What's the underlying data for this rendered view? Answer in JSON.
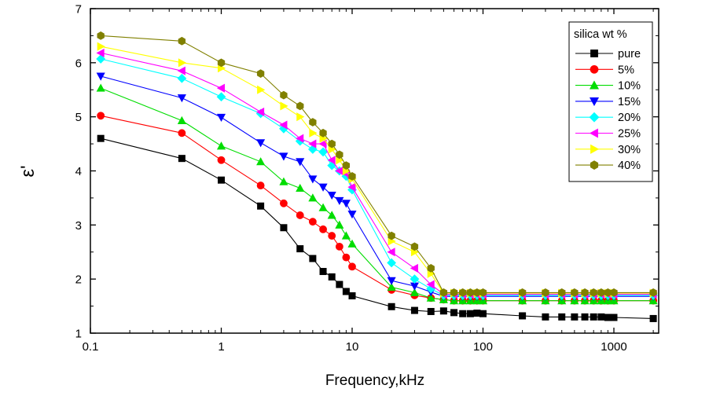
{
  "chart_data": {
    "type": "scatter",
    "title": "",
    "xlabel": "Frequency,kHz",
    "ylabel": "ε'",
    "xscale": "log",
    "xlim": [
      0.1,
      2200
    ],
    "ylim": [
      1,
      7
    ],
    "xticks": [
      0.1,
      1,
      10,
      100,
      1000
    ],
    "xtick_labels": [
      "0.1",
      "1",
      "10",
      "100",
      "1000"
    ],
    "yticks": [
      1,
      2,
      3,
      4,
      5,
      6,
      7
    ],
    "ytick_labels": [
      "1",
      "2",
      "3",
      "4",
      "5",
      "6",
      "7"
    ],
    "legend_title": "silica wt %",
    "legend_position": "top-right",
    "x": [
      0.12,
      0.5,
      1,
      2,
      3,
      4,
      5,
      6,
      7,
      8,
      9,
      10,
      20,
      30,
      40,
      50,
      60,
      70,
      80,
      90,
      100,
      200,
      300,
      400,
      500,
      600,
      700,
      800,
      900,
      1000,
      2000
    ],
    "series": [
      {
        "name": "pure",
        "color": "#000000",
        "marker": "square",
        "values": [
          4.6,
          4.23,
          3.83,
          3.35,
          2.95,
          2.56,
          2.38,
          2.14,
          2.04,
          1.9,
          1.77,
          1.69,
          1.49,
          1.42,
          1.4,
          1.41,
          1.38,
          1.36,
          1.36,
          1.37,
          1.36,
          1.32,
          1.3,
          1.3,
          1.3,
          1.3,
          1.3,
          1.3,
          1.29,
          1.29,
          1.27
        ]
      },
      {
        "name": "5%",
        "color": "#ff0000",
        "marker": "circle",
        "values": [
          5.02,
          4.7,
          4.2,
          3.73,
          3.4,
          3.18,
          3.06,
          2.92,
          2.8,
          2.6,
          2.4,
          2.23,
          1.8,
          1.7,
          1.65,
          1.62,
          1.6,
          1.6,
          1.6,
          1.6,
          1.6,
          1.6,
          1.6,
          1.6,
          1.6,
          1.6,
          1.6,
          1.6,
          1.6,
          1.6,
          1.6
        ]
      },
      {
        "name": "10%",
        "color": "#00dd00",
        "marker": "triangle-up",
        "values": [
          5.53,
          4.93,
          4.46,
          4.17,
          3.8,
          3.68,
          3.5,
          3.32,
          3.18,
          3.0,
          2.8,
          2.65,
          1.85,
          1.75,
          1.65,
          1.62,
          1.6,
          1.6,
          1.6,
          1.6,
          1.6,
          1.6,
          1.6,
          1.6,
          1.6,
          1.6,
          1.6,
          1.6,
          1.6,
          1.6,
          1.6
        ]
      },
      {
        "name": "15%",
        "color": "#0000ff",
        "marker": "triangle-down",
        "values": [
          5.75,
          5.35,
          4.99,
          4.52,
          4.27,
          4.17,
          3.85,
          3.7,
          3.55,
          3.45,
          3.4,
          3.2,
          1.97,
          1.87,
          1.76,
          1.68,
          1.68,
          1.68,
          1.68,
          1.68,
          1.68,
          1.68,
          1.68,
          1.68,
          1.68,
          1.68,
          1.68,
          1.68,
          1.68,
          1.68,
          1.68
        ]
      },
      {
        "name": "20%",
        "color": "#00ffff",
        "marker": "diamond",
        "values": [
          6.07,
          5.71,
          5.37,
          5.06,
          4.78,
          4.55,
          4.4,
          4.35,
          4.1,
          4.0,
          3.9,
          3.65,
          2.3,
          2.0,
          1.82,
          1.7,
          1.7,
          1.7,
          1.7,
          1.7,
          1.7,
          1.7,
          1.7,
          1.7,
          1.7,
          1.7,
          1.7,
          1.7,
          1.7,
          1.7,
          1.7
        ]
      },
      {
        "name": "25%",
        "color": "#ff00ff",
        "marker": "triangle-left",
        "values": [
          6.18,
          5.85,
          5.53,
          5.09,
          4.85,
          4.6,
          4.5,
          4.5,
          4.2,
          4.0,
          3.95,
          3.7,
          2.5,
          2.2,
          1.9,
          1.72,
          1.72,
          1.72,
          1.72,
          1.72,
          1.72,
          1.72,
          1.72,
          1.72,
          1.72,
          1.72,
          1.72,
          1.72,
          1.72,
          1.72,
          1.72
        ]
      },
      {
        "name": "30%",
        "color": "#ffff00",
        "marker": "triangle-right",
        "values": [
          6.3,
          6.0,
          5.9,
          5.5,
          5.2,
          5.0,
          4.7,
          4.6,
          4.4,
          4.2,
          4.0,
          3.85,
          2.7,
          2.5,
          2.1,
          1.74,
          1.74,
          1.74,
          1.74,
          1.74,
          1.74,
          1.74,
          1.74,
          1.74,
          1.74,
          1.74,
          1.74,
          1.74,
          1.74,
          1.74,
          1.74
        ]
      },
      {
        "name": "40%",
        "color": "#808000",
        "marker": "hexagon",
        "values": [
          6.5,
          6.4,
          6.0,
          5.8,
          5.4,
          5.2,
          4.9,
          4.7,
          4.5,
          4.3,
          4.1,
          3.9,
          2.8,
          2.6,
          2.2,
          1.75,
          1.75,
          1.75,
          1.75,
          1.75,
          1.75,
          1.75,
          1.75,
          1.75,
          1.75,
          1.75,
          1.75,
          1.75,
          1.75,
          1.75,
          1.75
        ]
      }
    ]
  }
}
